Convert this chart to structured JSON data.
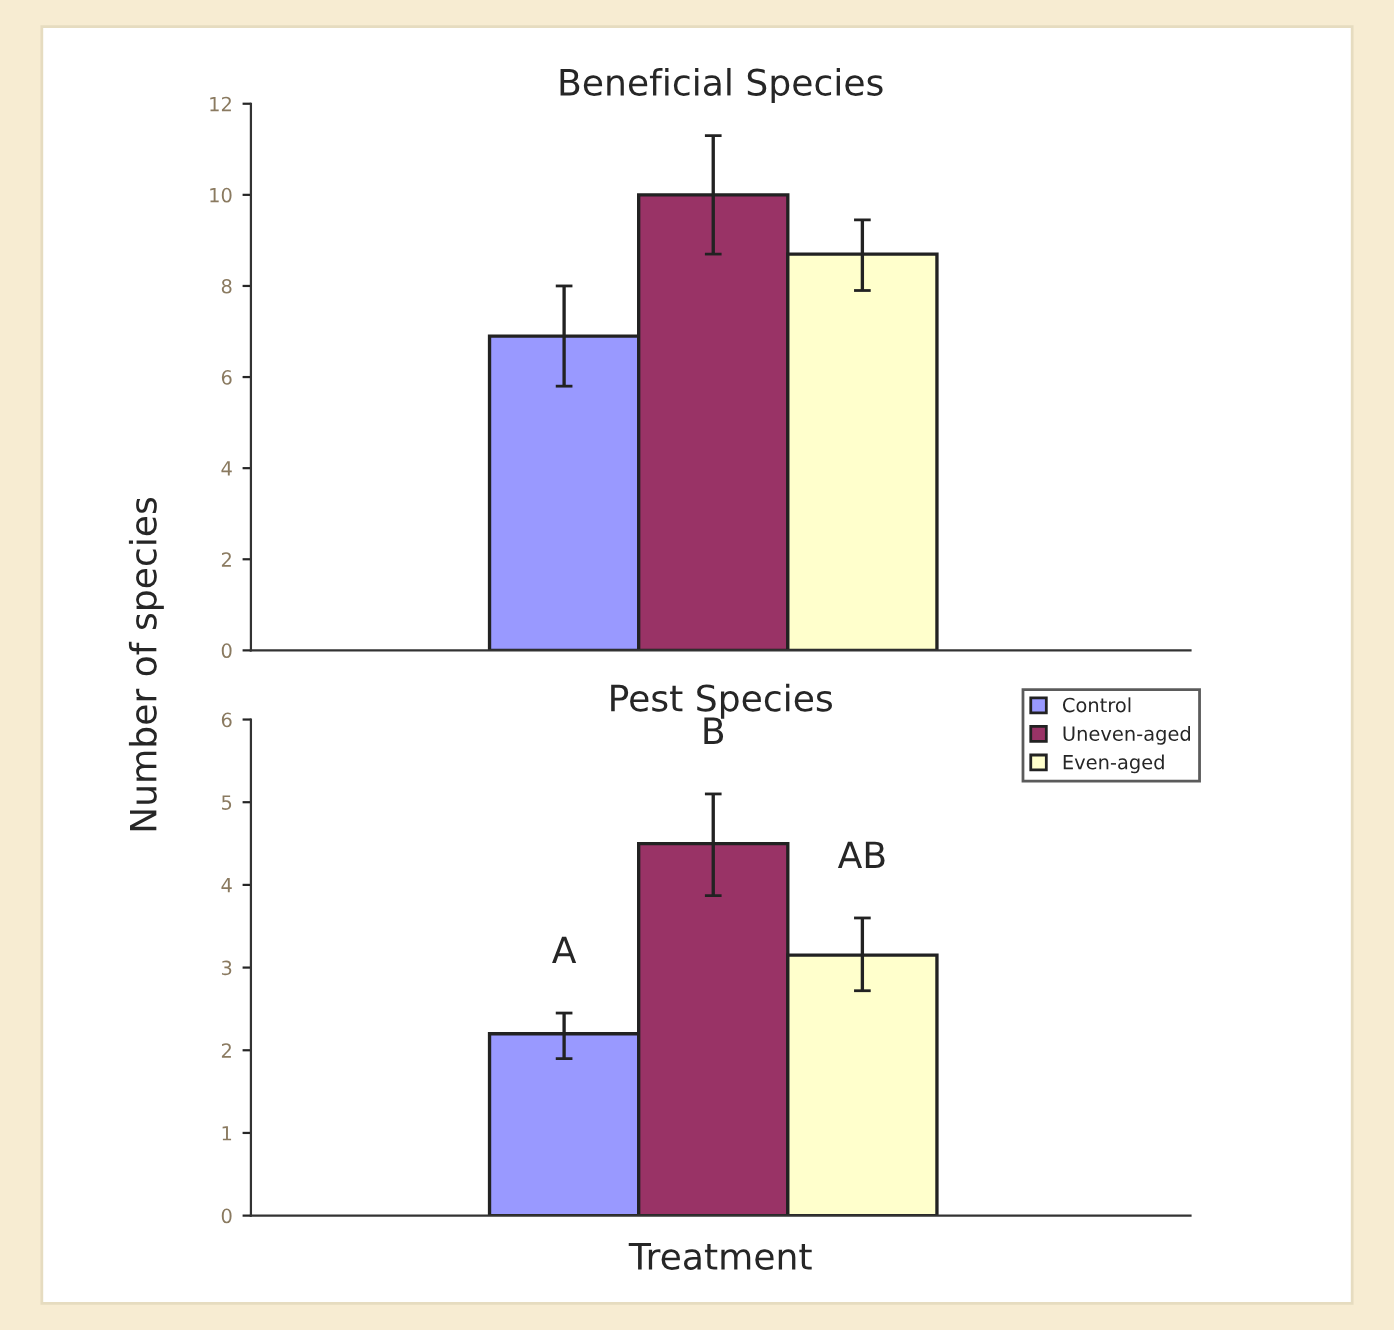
{
  "chart_data": [
    {
      "type": "bar",
      "title": "Beneficial Species",
      "ylabel": "Number of species",
      "categories": [
        null
      ],
      "ylim": [
        0,
        12
      ],
      "yticks": [
        0,
        2,
        4,
        6,
        8,
        10,
        12
      ],
      "series": [
        {
          "color": "#9999ff",
          "values": [
            6.9
          ],
          "errors": [
            [
              5.8,
              8.0
            ]
          ]
        },
        {
          "color": "#993366",
          "values": [
            10.0
          ],
          "errors": [
            [
              8.7,
              11.3
            ]
          ]
        },
        {
          "color": "#ffffcc",
          "values": [
            8.7
          ],
          "errors": [
            [
              7.9,
              9.45
            ]
          ]
        }
      ]
    },
    {
      "type": "bar",
      "title": "Pest Species",
      "xlabel": "Treatment",
      "categories": [
        null
      ],
      "ylim": [
        0,
        6
      ],
      "yticks": [
        0,
        1,
        2,
        3,
        4,
        5,
        6
      ],
      "legend": "top right",
      "annotations": [
        "A",
        "B",
        "AB"
      ],
      "series": [
        {
          "name": "Control",
          "color": "#9999ff",
          "values": [
            2.2
          ],
          "errors": [
            [
              1.9,
              2.45
            ]
          ]
        },
        {
          "name": "Uneven-aged",
          "color": "#993366",
          "values": [
            4.5
          ],
          "errors": [
            [
              3.87,
              5.1
            ]
          ]
        },
        {
          "name": "Even-aged",
          "color": "#ffffcc",
          "values": [
            3.15
          ],
          "errors": [
            [
              2.72,
              3.6
            ]
          ]
        }
      ]
    }
  ]
}
